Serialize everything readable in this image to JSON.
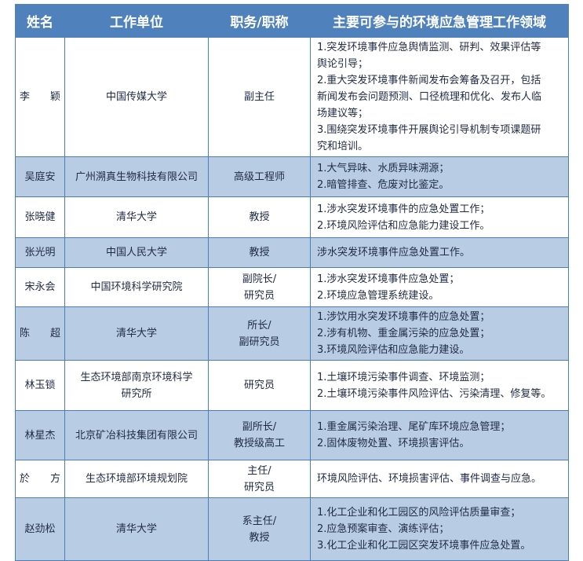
{
  "header": {
    "name": "姓名",
    "unit": "工作单位",
    "title": "职务/职称",
    "areas": "主要可参与的环境应急管理工作领域"
  },
  "rows": [
    {
      "name": "李　　颖",
      "unit": [
        "中国传媒大学"
      ],
      "title": [
        "副主任"
      ],
      "areas": [
        "1.突发环境事件应急舆情监测、研判、效果评估等",
        "舆论引导；",
        "2.重大突发环境事件新闻发布会筹备及召开，包括",
        "新闻发布会问题预测、口径梳理和优化、发布人临",
        "场建议等；",
        "3.围绕突发环境事件开展舆论引导机制专项课题研",
        "究和培训。"
      ]
    },
    {
      "name": "吴庭安",
      "unit": [
        "广州溯真生物科技有限公司"
      ],
      "title": [
        "高级工程师"
      ],
      "areas": [
        "1.大气异味、水质异味溯源；",
        "2.暗管排查、危废对比鉴定。"
      ]
    },
    {
      "name": "张晓健",
      "unit": [
        "清华大学"
      ],
      "title": [
        "教授"
      ],
      "areas": [
        "1.涉水突发环境事件的应急处置工作；",
        "2.环境风险评估和应急能力建设工作。"
      ]
    },
    {
      "name": "张光明",
      "unit": [
        "中国人民大学"
      ],
      "title": [
        "教授"
      ],
      "areas": [
        "涉水突发环境事件应急处置工作。"
      ]
    },
    {
      "name": "宋永会",
      "unit": [
        "中国环境科学研究院"
      ],
      "title": [
        "副院长/",
        "研究员"
      ],
      "areas": [
        "1.涉水突发环境事件应急处置；",
        "2.环境应急管理系统建设。"
      ]
    },
    {
      "name": "陈　　超",
      "unit": [
        "清华大学"
      ],
      "title": [
        "所长/",
        "副研究员"
      ],
      "areas": [
        "1.涉饮用水突发环境事件的应急处置；",
        "2.涉有机物、重金属污染的应急处置；",
        "3.环境风险评估和应急能力建设。"
      ]
    },
    {
      "name": "林玉锁",
      "unit": [
        "生态环境部南京环境科学",
        "研究所"
      ],
      "title": [
        "研究员"
      ],
      "areas": [
        "1.土壤环境污染事件调查、环境监测；",
        "2.土壤环境污染事件风险评估、污染清理、修复等。"
      ]
    },
    {
      "name": "林星杰",
      "unit": [
        "北京矿冶科技集团有限公司"
      ],
      "title": [
        "副所长/",
        "教授级高工"
      ],
      "areas": [
        "1.重金属污染治理、尾矿库环境应急管理；",
        "2.固体废物处置、环境损害评估。"
      ]
    },
    {
      "name": "於　　方",
      "unit": [
        "生态环境部环境规划院"
      ],
      "title": [
        "主任/",
        "研究员"
      ],
      "areas": [
        "环境风险评估、环境损害评估、事件调查与应急。"
      ]
    },
    {
      "name": "赵劲松",
      "unit": [
        "清华大学"
      ],
      "title": [
        "系主任/",
        "教授"
      ],
      "areas": [
        "1.化工企业和化工园区的风险评估质量审查；",
        "2.应急预案审查、演练评估；",
        "3.化工企业和化工园区突发环境事件应急处置。"
      ]
    }
  ],
  "colors": {
    "header_bg": "#4f81bd",
    "alt_row_bg": "#b8cce4",
    "border": "#4a7ebb"
  }
}
